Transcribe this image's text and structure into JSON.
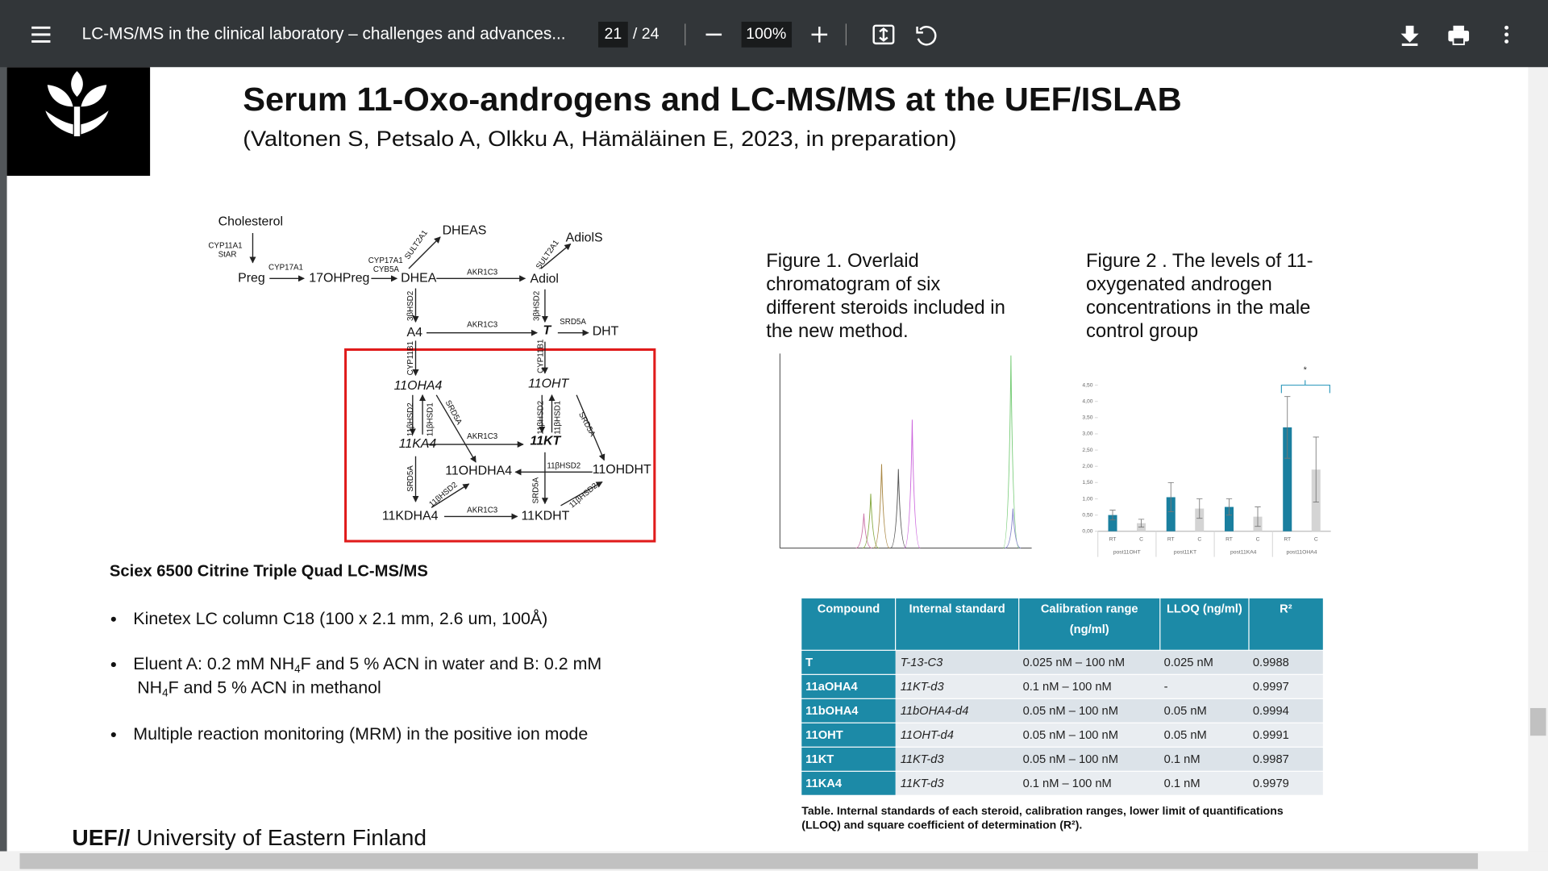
{
  "toolbar": {
    "document_title": "LC-MS/MS in the clinical laboratory – challenges and advances...",
    "page": "21",
    "page_count": "/ 24",
    "zoom": "100%"
  },
  "slide": {
    "title": "Serum 11-Oxo-androgens and LC-MS/MS at the UEF/ISLAB",
    "subtitle": "(Valtonen S, Petsalo A, Olkku A, Hämäläinen E, 2023, in preparation)",
    "diagram": {
      "labels": [
        "Cholesterol",
        "CYP11A1",
        "StAR",
        "Preg",
        "CYP17A1",
        "17OHPreg",
        "CYP17A1",
        "CYB5A",
        "SULT2A1",
        "DHEAS",
        "DHEA",
        "AKR1C3",
        "SULT2A1",
        "AdiolS",
        "Adiol",
        "3βHSD2",
        "3βHSD2",
        "A4",
        "AKR1C3",
        "T",
        "SRD5A",
        "DHT",
        "CYP11B1",
        "CYP11B1",
        "11OHA4",
        "11OHT",
        "11βHSD2",
        "11βHSD1",
        "SRD5A",
        "11βHSD2",
        "11βHSD1",
        "SRD5A",
        "11KA4",
        "AKR1C3",
        "11KT",
        "11OHDHA4",
        "11βHSD2",
        "11OHDHT",
        "SRD5A",
        "11βHSD2",
        "SRD5A",
        "11βHSD2",
        "11KDHA4",
        "AKR1C3",
        "11KDHT"
      ]
    },
    "figure1": {
      "caption": [
        "Figure 1. Overlaid",
        "chromatogram of six",
        "different steroids included in",
        "the new method."
      ]
    },
    "figure2": {
      "caption": [
        "Figure 2 . The levels of 11-",
        "oxygenated androgen",
        "concentrations in the male",
        "control group"
      ],
      "chart": {
        "type": "bar",
        "groups": [
          "post11OHT",
          "post11KT",
          "post11KA4",
          "post11OHA4"
        ],
        "series": [
          {
            "name": "RT",
            "color": "#1a7f9f",
            "values": [
              0.5,
              1.05,
              0.75,
              3.2
            ],
            "errors": [
              0.15,
              0.45,
              0.25,
              0.95
            ]
          },
          {
            "name": "C",
            "color": "#d4d4d4",
            "values": [
              0.25,
              0.7,
              0.45,
              1.9
            ],
            "errors": [
              0.12,
              0.3,
              0.3,
              1.0
            ]
          }
        ],
        "ylim": [
          0,
          4.5
        ],
        "yticks": [
          {
            "value": 0,
            "label": "0,00"
          },
          {
            "value": 0.5,
            "label": "0,50"
          },
          {
            "value": 1,
            "label": "1,00"
          },
          {
            "value": 1.5,
            "label": "1,50"
          },
          {
            "value": 2,
            "label": "2,00"
          },
          {
            "value": 2.5,
            "label": "2,50"
          },
          {
            "value": 3,
            "label": "3,00"
          },
          {
            "value": 3.5,
            "label": "3,50"
          },
          {
            "value": 4,
            "label": "4,00"
          },
          {
            "value": 4.5,
            "label": "4,50"
          }
        ],
        "annotation": "*"
      }
    },
    "instrument": {
      "heading": "Sciex 6500 Citrine Triple Quad LC-MS/MS",
      "bullets": [
        {
          "lines": [
            [
              "Kinetex LC column C18 (100 x 2.1 mm, 2.6 um, 100Å)"
            ]
          ]
        },
        {
          "lines": [
            [
              "Eluent A: 0.2 mM NH",
              "4",
              "F and 5 % ACN in water and B: 0.2 mM"
            ],
            [
              "NH",
              "4",
              "F and 5 % ACN in methanol"
            ]
          ]
        },
        {
          "lines": [
            [
              "Multiple reaction monitoring (MRM) in the positive ion mode"
            ]
          ]
        }
      ]
    },
    "table": {
      "header": [
        "Compound",
        "Internal standard",
        [
          "Calibration range",
          "(ng/ml)"
        ],
        "LLOQ (ng/ml)",
        "R²"
      ],
      "rows": [
        [
          "T",
          "T-13-C3",
          "0.025 nM – 100 nM",
          "0.025 nM",
          "0.9988"
        ],
        [
          "11aOHA4",
          "11KT-d3",
          "0.1 nM – 100 nM",
          "-",
          "0.9997"
        ],
        [
          "11bOHA4",
          "11bOHA4-d4",
          "0.05 nM – 100 nM",
          "0.05 nM",
          "0.9994"
        ],
        [
          "11OHT",
          "11OHT-d4",
          "0.05 nM – 100 nM",
          "0.05 nM",
          "0.9991"
        ],
        [
          "11KT",
          "11KT-d3",
          "0.05 nM – 100 nM",
          "0.1 nM",
          "0.9987"
        ],
        [
          "11KA4",
          "11KT-d3",
          "0.1 nM – 100 nM",
          "0.1 nM",
          "0.9979"
        ]
      ],
      "caption": [
        "Table. Internal standards of each steroid, calibration ranges, lower limit of quantifications",
        "(LLOQ) and square coefficient of determination (R²)."
      ]
    },
    "footer": {
      "brand": "UEF//",
      "name": " University of Eastern Finland"
    }
  }
}
